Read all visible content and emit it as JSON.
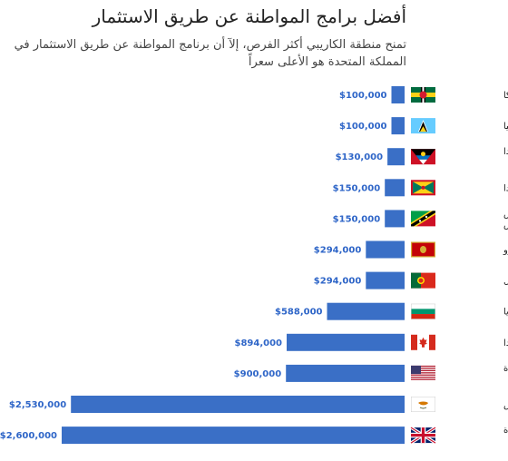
{
  "chart_data": {
    "type": "bar",
    "orientation": "horizontal",
    "title": "أفضل برامج المواطنة عن طريق الاستثمار",
    "subtitle": "تمنح منطقة الكاريبي أكثر الفرص، إلآ أن برنامج المواطنة عن طريق الاستثمار في المملكة المتحدة هو الأعلى سعراً",
    "categories": [
      "دومينيكا",
      "سانت لوسيا",
      "أنتيغوا وبربودا",
      "غرينادا",
      "سانت كيتس ونيفيس",
      "مونتينيغرو",
      "البرتغال",
      "بلغاريا",
      "كندا",
      "الولايات المتحدة",
      "قبرص",
      "المملكة المتحدة"
    ],
    "values": [
      100000,
      100000,
      130000,
      150000,
      150000,
      294000,
      294000,
      588000,
      894000,
      900000,
      2530000,
      2600000
    ],
    "value_labels": [
      "$100,000",
      "$100,000",
      "$130,000",
      "$150,000",
      "$150,000",
      "$294,000",
      "$294,000",
      "$588,000",
      "$894,000",
      "$900,000",
      "$2,530,000",
      "$2,600,000"
    ],
    "flags": [
      "dominica-flag",
      "saint-lucia-flag",
      "antigua-barbuda-flag",
      "grenada-flag",
      "saint-kitts-nevis-flag",
      "montenegro-flag",
      "portugal-flag",
      "bulgaria-flag",
      "canada-flag",
      "usa-flag",
      "cyprus-flag",
      "uk-flag"
    ],
    "xlim": [
      0,
      2600000
    ],
    "bar_color": "#3a6fc6",
    "value_label_color": "#2f66c8",
    "grid": false,
    "legend": "none"
  }
}
